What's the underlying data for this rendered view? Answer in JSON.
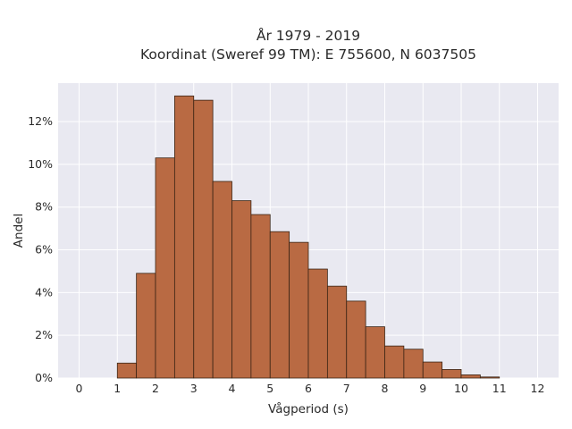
{
  "chart_data": {
    "type": "bar",
    "title_line1": "År 1979 - 2019",
    "title_line2": "Koordinat (Sweref 99 TM): E 755600, N 6037505",
    "xlabel": "Vågperiod (s)",
    "ylabel": "Andel",
    "bin_width": 0.5,
    "bins": [
      {
        "x0": 0.0,
        "value": 0.0
      },
      {
        "x0": 0.5,
        "value": 0.0
      },
      {
        "x0": 1.0,
        "value": 0.7
      },
      {
        "x0": 1.5,
        "value": 4.9
      },
      {
        "x0": 2.0,
        "value": 10.3
      },
      {
        "x0": 2.5,
        "value": 13.2
      },
      {
        "x0": 3.0,
        "value": 13.0
      },
      {
        "x0": 3.5,
        "value": 9.2
      },
      {
        "x0": 4.0,
        "value": 8.3
      },
      {
        "x0": 4.5,
        "value": 7.65
      },
      {
        "x0": 5.0,
        "value": 6.85
      },
      {
        "x0": 5.5,
        "value": 6.35
      },
      {
        "x0": 6.0,
        "value": 5.1
      },
      {
        "x0": 6.5,
        "value": 4.3
      },
      {
        "x0": 7.0,
        "value": 3.6
      },
      {
        "x0": 7.5,
        "value": 2.4
      },
      {
        "x0": 8.0,
        "value": 1.5
      },
      {
        "x0": 8.5,
        "value": 1.35
      },
      {
        "x0": 9.0,
        "value": 0.75
      },
      {
        "x0": 9.5,
        "value": 0.4
      },
      {
        "x0": 10.0,
        "value": 0.15
      },
      {
        "x0": 10.5,
        "value": 0.05
      },
      {
        "x0": 11.0,
        "value": 0.0
      }
    ],
    "xlim": [
      -0.55,
      12.55
    ],
    "ylim": [
      0,
      13.8
    ],
    "xticks": [
      0,
      1,
      2,
      3,
      4,
      5,
      6,
      7,
      8,
      9,
      10,
      11,
      12
    ],
    "yticks": [
      0,
      2,
      4,
      6,
      8,
      10,
      12
    ],
    "ytick_labels": [
      "0%",
      "2%",
      "4%",
      "6%",
      "8%",
      "10%",
      "12%"
    ],
    "grid": true,
    "colors": {
      "bar_fill": "#b96a43",
      "bar_edge": "#3a2414",
      "plot_bg": "#e9e9f1",
      "grid": "#ffffff",
      "text": "#2a2a2a"
    }
  }
}
